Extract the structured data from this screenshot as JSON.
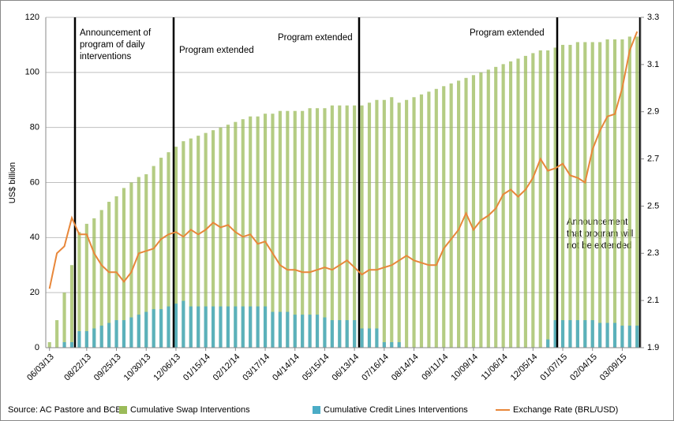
{
  "chart_data": {
    "type": "combo",
    "y_label": "US$ billion",
    "source": "Source: AC Pastore and BCB",
    "annotations": [
      [
        "Announcement of",
        "program of daily",
        "interventions"
      ],
      [
        "Program extended"
      ],
      [
        "Program extended"
      ],
      [
        "Program extended"
      ],
      [
        "Announcement",
        "that program will",
        "not be extended"
      ]
    ],
    "categories": [
      "06/03/13",
      null,
      null,
      null,
      null,
      "08/22/13",
      null,
      null,
      null,
      "09/25/13",
      null,
      null,
      null,
      "10/30/13",
      null,
      null,
      null,
      "12/06/13",
      null,
      null,
      null,
      "01/15/14",
      null,
      null,
      null,
      "02/12/14",
      null,
      null,
      null,
      "03/17/14",
      null,
      null,
      null,
      "04/14/14",
      null,
      null,
      null,
      "05/15/14",
      null,
      null,
      null,
      "06/13/14",
      null,
      null,
      null,
      "07/16/14",
      null,
      null,
      null,
      "08/14/14",
      null,
      null,
      null,
      "09/11/14",
      null,
      null,
      null,
      "10/09/14",
      null,
      null,
      null,
      "11/06/14",
      null,
      null,
      null,
      "12/05/14",
      null,
      null,
      null,
      "01/07/15",
      null,
      null,
      null,
      "02/04/15",
      null,
      null,
      null,
      "03/09/15",
      null,
      null
    ],
    "series": [
      {
        "name": "Cumulative Swap Interventions",
        "type": "bar",
        "color": "#9bbb59",
        "values": [
          2,
          10,
          20,
          30,
          42,
          45,
          47,
          50,
          53,
          55,
          58,
          60,
          62,
          63,
          66,
          69,
          71,
          73,
          75,
          76,
          77,
          78,
          79,
          80,
          81,
          82,
          83,
          84,
          84,
          85,
          85,
          86,
          86,
          86,
          86,
          87,
          87,
          87,
          88,
          88,
          88,
          88,
          88,
          89,
          90,
          90,
          91,
          89,
          90,
          91,
          92,
          93,
          94,
          95,
          96,
          97,
          98,
          99,
          100,
          101,
          102,
          103,
          104,
          105,
          106,
          107,
          108,
          108,
          109,
          110,
          110,
          111,
          111,
          111,
          111,
          112,
          112,
          112,
          113,
          113
        ]
      },
      {
        "name": "Cumulative Credit Lines Interventions",
        "type": "bar",
        "color": "#4bacc6",
        "values": [
          0,
          0,
          2,
          2,
          6,
          6,
          7,
          8,
          9,
          10,
          10,
          11,
          12,
          13,
          14,
          14,
          15,
          16,
          17,
          15,
          15,
          15,
          15,
          15,
          15,
          15,
          15,
          15,
          15,
          15,
          13,
          13,
          13,
          12,
          12,
          12,
          12,
          11,
          10,
          10,
          10,
          10,
          7,
          7,
          7,
          2,
          2,
          2,
          0,
          0,
          0,
          0,
          0,
          0,
          0,
          0,
          0,
          0,
          0,
          0,
          0,
          0,
          0,
          0,
          0,
          0,
          0,
          3,
          10,
          10,
          10,
          10,
          10,
          10,
          9,
          9,
          9,
          8,
          8,
          8
        ]
      },
      {
        "name": "Exchange Rate (BRL/USD)",
        "type": "line",
        "axis": "y2",
        "color": "#e8873a",
        "values": [
          2.15,
          2.3,
          2.33,
          2.45,
          2.38,
          2.38,
          2.3,
          2.25,
          2.22,
          2.22,
          2.18,
          2.22,
          2.3,
          2.31,
          2.32,
          2.36,
          2.38,
          2.39,
          2.37,
          2.4,
          2.38,
          2.4,
          2.43,
          2.41,
          2.42,
          2.39,
          2.37,
          2.38,
          2.34,
          2.35,
          2.3,
          2.25,
          2.23,
          2.23,
          2.22,
          2.22,
          2.23,
          2.24,
          2.23,
          2.25,
          2.27,
          2.24,
          2.21,
          2.23,
          2.23,
          2.24,
          2.25,
          2.27,
          2.29,
          2.27,
          2.26,
          2.25,
          2.25,
          2.32,
          2.36,
          2.4,
          2.47,
          2.4,
          2.44,
          2.46,
          2.49,
          2.55,
          2.57,
          2.54,
          2.57,
          2.62,
          2.7,
          2.65,
          2.66,
          2.68,
          2.63,
          2.62,
          2.6,
          2.74,
          2.82,
          2.88,
          2.89,
          3.0,
          3.16,
          3.24
        ]
      }
    ],
    "ylim": [
      0,
      120
    ],
    "yticks": [
      0,
      20,
      40,
      60,
      80,
      100,
      120
    ],
    "y2lim": [
      1.9,
      3.3
    ],
    "y2ticks": [
      1.9,
      2.1,
      2.3,
      2.5,
      2.7,
      2.9,
      3.1,
      3.3
    ],
    "grid": true
  }
}
